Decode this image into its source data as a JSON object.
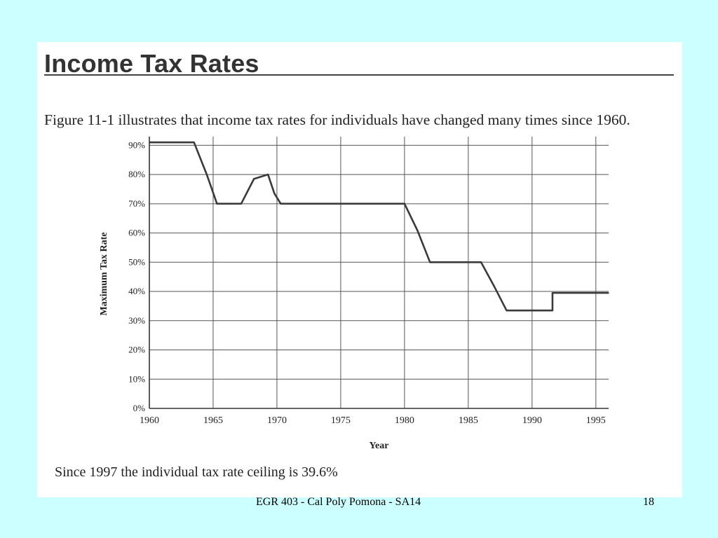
{
  "slide": {
    "title": "Income Tax Rates",
    "caption": "Figure 11-1 illustrates that income tax rates for individuals have changed many times since 1960.",
    "note": "Since 1997 the individual tax rate ceiling is 39.6%",
    "footer": "EGR 403 - Cal Poly Pomona - SA14",
    "page_number": "18"
  },
  "chart_data": {
    "type": "line",
    "title": "",
    "xlabel": "Year",
    "ylabel": "Maximum Tax Rate",
    "xlim": [
      1960,
      1996
    ],
    "ylim": [
      0,
      92
    ],
    "x_ticks": [
      1960,
      1965,
      1970,
      1975,
      1980,
      1985,
      1990,
      1995
    ],
    "x_tick_labels": [
      "1960",
      "1965",
      "1970",
      "1975",
      "1980",
      "1985",
      "1990",
      "1995"
    ],
    "y_ticks": [
      0,
      10,
      20,
      30,
      40,
      50,
      60,
      70,
      80,
      90
    ],
    "y_tick_labels": [
      "0%",
      "10%",
      "20%",
      "30%",
      "40%",
      "50%",
      "60%",
      "70%",
      "80%",
      "90%"
    ],
    "grid": true,
    "series": [
      {
        "x": [
          1960,
          1963.5,
          1964.5,
          1965.3,
          1967.2,
          1968.2,
          1969.3,
          1969.8,
          1970.3,
          1980,
          1981,
          1982,
          1986,
          1987,
          1988,
          1991.6,
          1991.6,
          1996
        ],
        "y": [
          91,
          91,
          80,
          70,
          70,
          78.5,
          80,
          73.5,
          70,
          70,
          61,
          50,
          50,
          42,
          33.5,
          33.5,
          39.5,
          39.5
        ]
      }
    ]
  }
}
